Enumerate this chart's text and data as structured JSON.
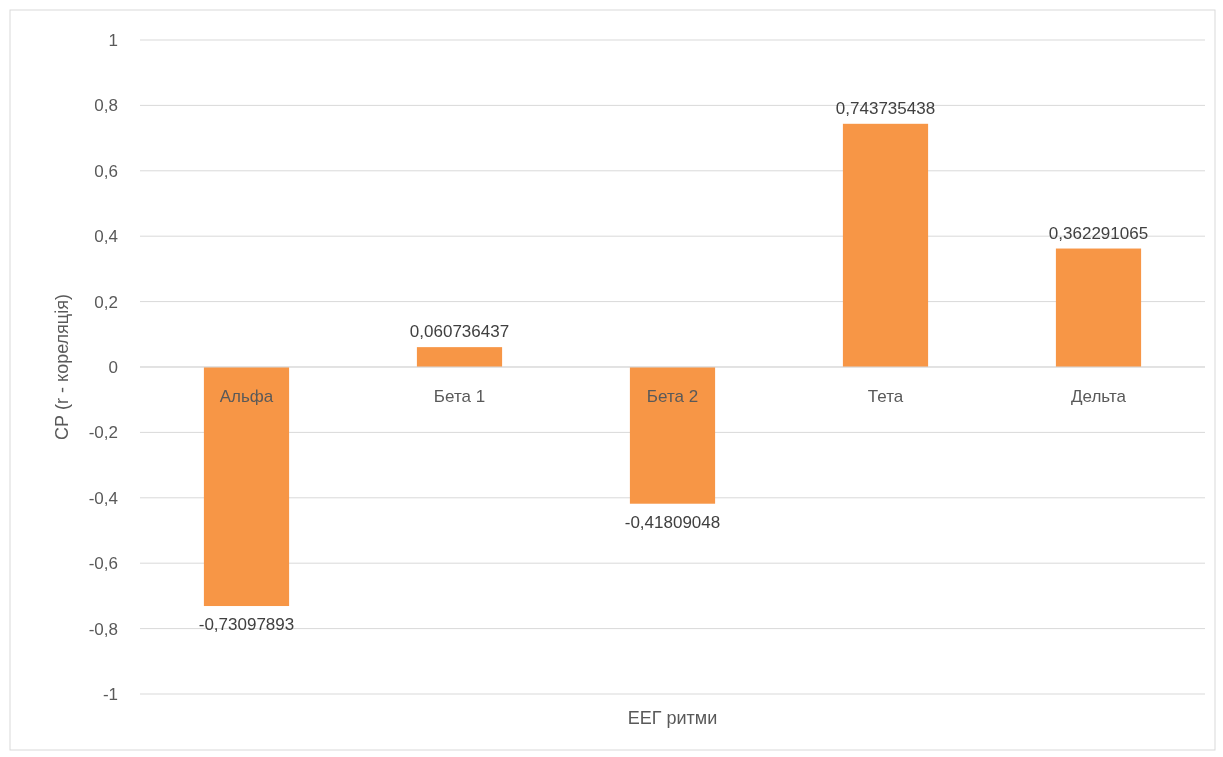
{
  "chart_data": {
    "type": "bar",
    "xlabel": "ЕЕГ ритми",
    "ylabel": "СР (r - кореляція)",
    "categories": [
      "Альфа",
      "Бета 1",
      "Бета 2",
      "Тета",
      "Дельта"
    ],
    "values": [
      -0.73097893,
      0.060736437,
      -0.41809048,
      0.743735438,
      0.362291065
    ],
    "value_labels": [
      "-0,73097893",
      "0,060736437",
      "-0,41809048",
      "0,743735438",
      "0,362291065"
    ],
    "color": "#f79646",
    "ylim": [
      -1,
      1
    ],
    "yticks": [
      {
        "value": -1,
        "label": "-1"
      },
      {
        "value": -0.8,
        "label": "-0,8"
      },
      {
        "value": -0.6,
        "label": "-0,6"
      },
      {
        "value": -0.4,
        "label": "-0,4"
      },
      {
        "value": -0.2,
        "label": "-0,2"
      },
      {
        "value": 0,
        "label": "0"
      },
      {
        "value": 0.2,
        "label": "0,2"
      },
      {
        "value": 0.4,
        "label": "0,4"
      },
      {
        "value": 0.6,
        "label": "0,6"
      },
      {
        "value": 0.8,
        "label": "0,8"
      },
      {
        "value": 1,
        "label": "1"
      }
    ],
    "grid": "y"
  }
}
